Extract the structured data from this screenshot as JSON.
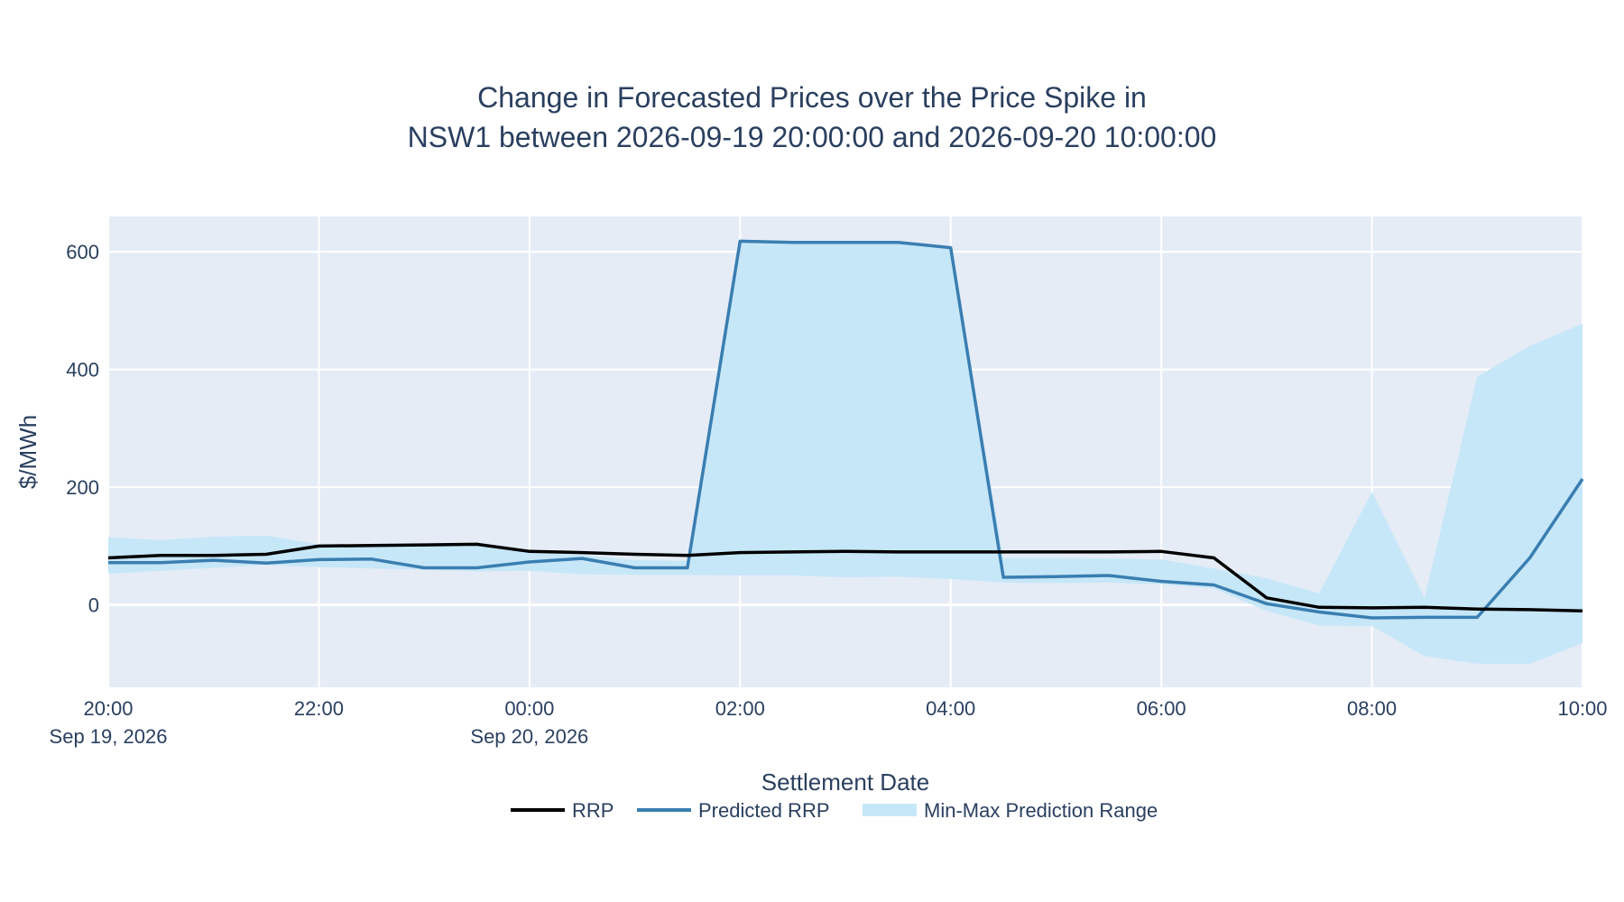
{
  "chart_data": {
    "type": "line",
    "title_lines": [
      "Change in Forecasted Prices over the Price Spike in",
      "NSW1 between 2026-09-19 20:00:00 and 2026-09-20 10:00:00"
    ],
    "xlabel": "Settlement Date",
    "ylabel": "$/MWh",
    "x_range": [
      "2026-09-19 20:00",
      "2026-09-20 10:00"
    ],
    "ylim": [
      -140,
      660
    ],
    "y_ticks": [
      0,
      200,
      400,
      600
    ],
    "x_ticks": [
      {
        "t": "2026-09-19 20:00",
        "label": "20:00",
        "date_label": "Sep 19, 2026"
      },
      {
        "t": "2026-09-19 22:00",
        "label": "22:00",
        "date_label": ""
      },
      {
        "t": "2026-09-20 00:00",
        "label": "00:00",
        "date_label": "Sep 20, 2026"
      },
      {
        "t": "2026-09-20 02:00",
        "label": "02:00",
        "date_label": ""
      },
      {
        "t": "2026-09-20 04:00",
        "label": "04:00",
        "date_label": ""
      },
      {
        "t": "2026-09-20 06:00",
        "label": "06:00",
        "date_label": ""
      },
      {
        "t": "2026-09-20 08:00",
        "label": "08:00",
        "date_label": ""
      },
      {
        "t": "2026-09-20 10:00",
        "label": "10:00",
        "date_label": ""
      }
    ],
    "grid": true,
    "legend_position": "bottom-center",
    "colors": {
      "rrp": "#000000",
      "predicted": "#3a7eb1",
      "range_fill": "#c6e7f8",
      "plot_bg": "#e5ecf6",
      "grid": "#ffffff",
      "text": "#2a3f5f"
    },
    "x": [
      "2026-09-19 20:00",
      "2026-09-19 20:30",
      "2026-09-19 21:00",
      "2026-09-19 21:30",
      "2026-09-19 22:00",
      "2026-09-19 22:30",
      "2026-09-19 23:00",
      "2026-09-19 23:30",
      "2026-09-20 00:00",
      "2026-09-20 00:30",
      "2026-09-20 01:00",
      "2026-09-20 01:30",
      "2026-09-20 02:00",
      "2026-09-20 02:30",
      "2026-09-20 03:00",
      "2026-09-20 03:30",
      "2026-09-20 04:00",
      "2026-09-20 04:30",
      "2026-09-20 05:00",
      "2026-09-20 05:30",
      "2026-09-20 06:00",
      "2026-09-20 06:30",
      "2026-09-20 07:00",
      "2026-09-20 07:30",
      "2026-09-20 08:00",
      "2026-09-20 08:30",
      "2026-09-20 09:00",
      "2026-09-20 09:30",
      "2026-09-20 10:00"
    ],
    "series": [
      {
        "name": "RRP",
        "values": [
          80,
          84,
          84,
          86,
          100,
          101,
          102,
          103,
          91,
          89,
          86,
          84,
          89,
          90,
          91,
          90,
          90,
          90,
          90,
          90,
          91,
          80,
          12,
          -4,
          -5,
          -4,
          -7,
          -8,
          -10
        ]
      },
      {
        "name": "Predicted RRP",
        "values": [
          72,
          72,
          76,
          71,
          77,
          78,
          63,
          63,
          73,
          79,
          63,
          63,
          618,
          616,
          616,
          616,
          607,
          47,
          48,
          50,
          40,
          34,
          2,
          -12,
          -22,
          -21,
          -21,
          80,
          214
        ]
      },
      {
        "name": "Min-Max Prediction Range",
        "min": [
          53,
          58,
          63,
          68,
          64,
          62,
          60,
          57,
          58,
          52,
          51,
          51,
          50,
          50,
          47,
          48,
          44,
          38,
          37,
          38,
          35,
          28,
          -10,
          -35,
          -36,
          -87,
          -100,
          -100,
          -65
        ],
        "max": [
          115,
          110,
          116,
          118,
          103,
          102,
          102,
          103,
          90,
          85,
          76,
          75,
          618,
          616,
          616,
          616,
          607,
          80,
          80,
          79,
          77,
          62,
          45,
          20,
          192,
          12,
          388,
          440,
          478
        ]
      }
    ]
  }
}
